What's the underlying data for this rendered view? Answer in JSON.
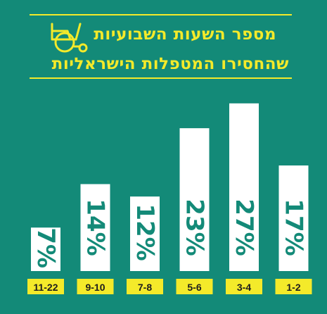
{
  "header": {
    "title_line1": "מספר השעות השבועיות",
    "title_line2": "שהחסירו המטפלות הישראליות",
    "icon": "wheelchair-icon",
    "accent_color": "#f4ea2a"
  },
  "colors": {
    "background": "#138a78",
    "bar": "#ffffff",
    "label_bg": "#f4ea2a",
    "value_text": "#138a78"
  },
  "chart_data": {
    "type": "bar",
    "title": "מספר השעות השבועיות שהחסירו המטפלות הישראליות",
    "categories": [
      "11-22",
      "9-10",
      "7-8",
      "5-6",
      "3-4",
      "1-2"
    ],
    "values": [
      7,
      14,
      12,
      23,
      27,
      17
    ],
    "value_labels": [
      "7%",
      "14%",
      "12%",
      "23%",
      "27%",
      "17%"
    ],
    "ylim": [
      0,
      28
    ],
    "grid": false
  }
}
